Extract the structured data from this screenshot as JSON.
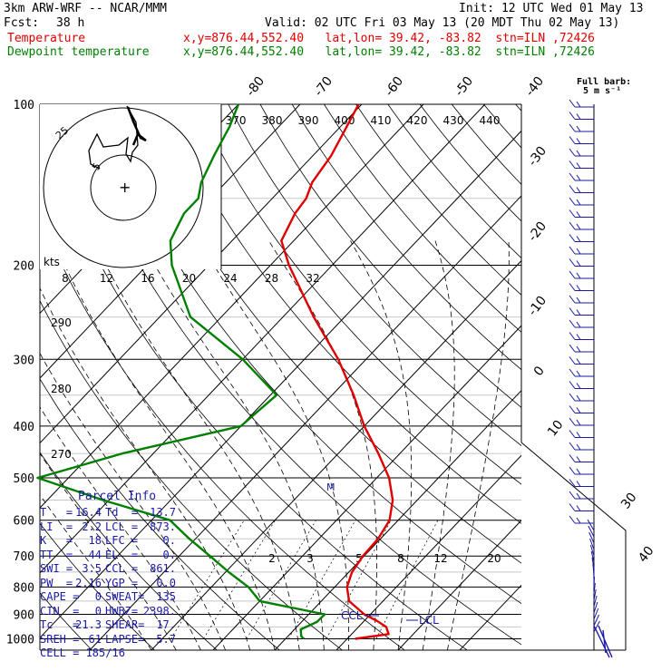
{
  "header": {
    "model": "3km ARW-WRF -- NCAR/MMM",
    "init": "Init: 12 UTC Wed 01 May 13",
    "fcst_label": "Fcst:",
    "fcst_value": "38 h",
    "valid": "Valid: 02 UTC Fri 03 May 13 (20 MDT Thu 02 May 13)",
    "temp_label": "Temperature",
    "temp_info": "x,y=876.44,552.40   lat,lon= 39.42, -83.82  stn=ILN ,72426",
    "dew_label": "Dewpoint temperature",
    "dew_info": "x,y=876.44,552.40   lat,lon= 39.42, -83.82  stn=ILN ,72426"
  },
  "barb_legend": {
    "title": "Full barb:",
    "value": "5 m s⁻¹"
  },
  "colors": {
    "temperature": "#e00000",
    "dewpoint": "#008000",
    "isotherm": "#000000",
    "parcel": "#1a1aa6"
  },
  "chart_data": {
    "type": "line",
    "diagram": "skew-T log-P",
    "pressure_levels": [
      100,
      200,
      300,
      400,
      500,
      600,
      700,
      800,
      900,
      1000
    ],
    "pressure_extra_lines": [
      150,
      250,
      350,
      450,
      550,
      650,
      750,
      850,
      950
    ],
    "isotherms": [
      -80,
      -70,
      -60,
      -50,
      -40,
      -30,
      -20,
      -10,
      0,
      10,
      20,
      30,
      40
    ],
    "theta_labels": [
      270,
      280,
      290
    ],
    "theta_e_labels": [
      370,
      380,
      390,
      400,
      410,
      420,
      430,
      440
    ],
    "mixing_ratio_labels": [
      2,
      3,
      5,
      8,
      12,
      20
    ],
    "series": [
      {
        "name": "Temperature",
        "points": [
          [
            1000,
            21.3
          ],
          [
            980,
            26.0
          ],
          [
            950,
            24.5
          ],
          [
            925,
            22.0
          ],
          [
            900,
            19.0
          ],
          [
            850,
            14.5
          ],
          [
            800,
            12.0
          ],
          [
            750,
            10.5
          ],
          [
            700,
            9.8
          ],
          [
            650,
            9.6
          ],
          [
            600,
            8.6
          ],
          [
            550,
            6.0
          ],
          [
            500,
            2.0
          ],
          [
            450,
            -3.5
          ],
          [
            400,
            -10.0
          ],
          [
            350,
            -16.5
          ],
          [
            300,
            -24.5
          ],
          [
            250,
            -35.0
          ],
          [
            200,
            -47.0
          ],
          [
            180,
            -52.0
          ],
          [
            160,
            -54.0
          ],
          [
            150,
            -54.5
          ],
          [
            140,
            -56.0
          ],
          [
            125,
            -57.0
          ],
          [
            110,
            -59.0
          ],
          [
            100,
            -60.5
          ]
        ]
      },
      {
        "name": "Dewpoint",
        "points": [
          [
            1000,
            13.0
          ],
          [
            990,
            12.2
          ],
          [
            960,
            11.0
          ],
          [
            930,
            12.5
          ],
          [
            900,
            12.6
          ],
          [
            850,
            0.0
          ],
          [
            800,
            -4.0
          ],
          [
            750,
            -9.5
          ],
          [
            700,
            -15.0
          ],
          [
            650,
            -21.0
          ],
          [
            600,
            -27.0
          ],
          [
            550,
            -41.0
          ],
          [
            500,
            -55.0
          ],
          [
            450,
            -45.0
          ],
          [
            400,
            -30.0
          ],
          [
            350,
            -29.0
          ],
          [
            300,
            -40.0
          ],
          [
            250,
            -55.0
          ],
          [
            200,
            -66.0
          ],
          [
            180,
            -70.0
          ],
          [
            160,
            -72.0
          ],
          [
            150,
            -72.0
          ],
          [
            140,
            -74.0
          ],
          [
            125,
            -76.0
          ],
          [
            110,
            -78.0
          ],
          [
            100,
            -80.0
          ]
        ]
      }
    ],
    "hodograph": {
      "rings_kts": [
        5,
        25
      ],
      "scale_label": "kts",
      "speed_axis": [
        8,
        12,
        16,
        20,
        24,
        28,
        32
      ]
    },
    "markers": [
      "CCL",
      "LCL"
    ],
    "right_axis_labels": [
      30,
      40
    ]
  },
  "parcel_info": {
    "title": "Parcel Info",
    "rows": [
      {
        "l1": "T   =",
        "v1": "16.4",
        "l2": "Td  =",
        "v2": "13.7"
      },
      {
        "l1": "LI  =",
        "v1": "2.2",
        "l2": "LCL =",
        "v2": "873."
      },
      {
        "l1": "K   =",
        "v1": "18",
        "l2": "LFC =",
        "v2": "0."
      },
      {
        "l1": "TT  =",
        "v1": "44",
        "l2": "EL  =",
        "v2": "0."
      },
      {
        "l1": "SWI =",
        "v1": "3.5",
        "l2": "CCL =",
        "v2": "861."
      },
      {
        "l1": "PW  =",
        "v1": "2.16",
        "l2": "YGP =",
        "v2": "0.0"
      },
      {
        "l1": "CAPE =",
        "v1": "0",
        "l2": "SWEAT=",
        "v2": "135"
      },
      {
        "l1": "CIN  =",
        "v1": "0",
        "l2": "HWBZ=",
        "v2": "2398."
      },
      {
        "l1": "Tc   =",
        "v1": "21.3",
        "l2": "SHEAR=",
        "v2": "17."
      },
      {
        "l1": "SREH =",
        "v1": "61",
        "l2": "LAPSE=",
        "v2": "5.7"
      },
      {
        "l1": "CELL = 185/16",
        "v1": "",
        "l2": "",
        "v2": ""
      }
    ]
  }
}
